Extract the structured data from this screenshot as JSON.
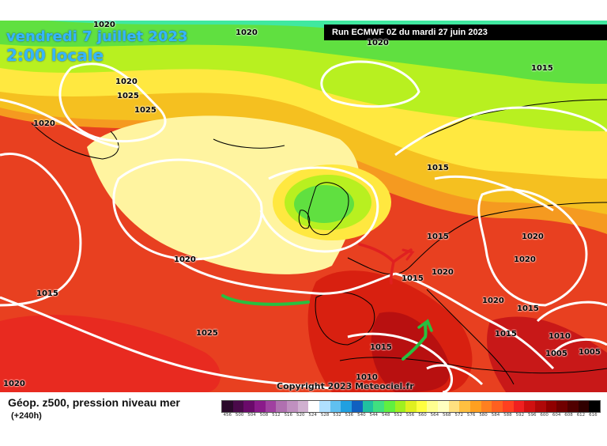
{
  "header": {
    "date": "vendredi 7 juillet 2023",
    "time": "2:00 locale",
    "run": "Run ECMWF 0Z du mardi 27 juin 2023"
  },
  "map": {
    "pressure_labels": [
      {
        "text": "1020"
      },
      {
        "text": "1020"
      },
      {
        "text": "1020"
      },
      {
        "text": "1015"
      },
      {
        "text": "1020"
      },
      {
        "text": "1025"
      },
      {
        "text": "1025"
      },
      {
        "text": "1020"
      },
      {
        "text": "1015"
      },
      {
        "text": "1015"
      },
      {
        "text": "1020"
      },
      {
        "text": "1015"
      },
      {
        "text": "1020"
      },
      {
        "text": "1020"
      },
      {
        "text": "1020"
      },
      {
        "text": "1015"
      },
      {
        "text": "1025"
      },
      {
        "text": "1015"
      },
      {
        "text": "1020"
      },
      {
        "text": "1015"
      },
      {
        "text": "1010"
      },
      {
        "text": "1010"
      },
      {
        "text": "1005"
      },
      {
        "text": "1005"
      },
      {
        "text": "1020"
      },
      {
        "text": "1015"
      }
    ],
    "copyright": "Copyright 2023 Meteociel.fr"
  },
  "footer": {
    "title": "Géop. z500, pression niveau mer",
    "subtitle": "(+240h)"
  },
  "legend": {
    "colors": [
      "#2a0a2a",
      "#4a0a4a",
      "#6a0a6a",
      "#8a1a8a",
      "#a040a0",
      "#b070b0",
      "#c090c0",
      "#d0b0d0",
      "#ffffff",
      "#b0e0ff",
      "#60c0f0",
      "#20a0e0",
      "#1060c0",
      "#20c0a0",
      "#40e080",
      "#60f040",
      "#a0f020",
      "#e0f020",
      "#ffff40",
      "#ffff90",
      "#ffffc0",
      "#ffe080",
      "#ffc040",
      "#ffa020",
      "#ff8020",
      "#ff6020",
      "#ff4020",
      "#f02020",
      "#d01010",
      "#b00808",
      "#900000",
      "#700000",
      "#500000",
      "#300000",
      "#000000"
    ],
    "labels": [
      "456",
      "500",
      "504",
      "508",
      "512",
      "516",
      "520",
      "524",
      "528",
      "532",
      "536",
      "540",
      "544",
      "548",
      "552",
      "556",
      "560",
      "564",
      "568",
      "572",
      "576",
      "580",
      "584",
      "588",
      "592",
      "596",
      "600",
      "604",
      "608",
      "612",
      "616"
    ]
  }
}
